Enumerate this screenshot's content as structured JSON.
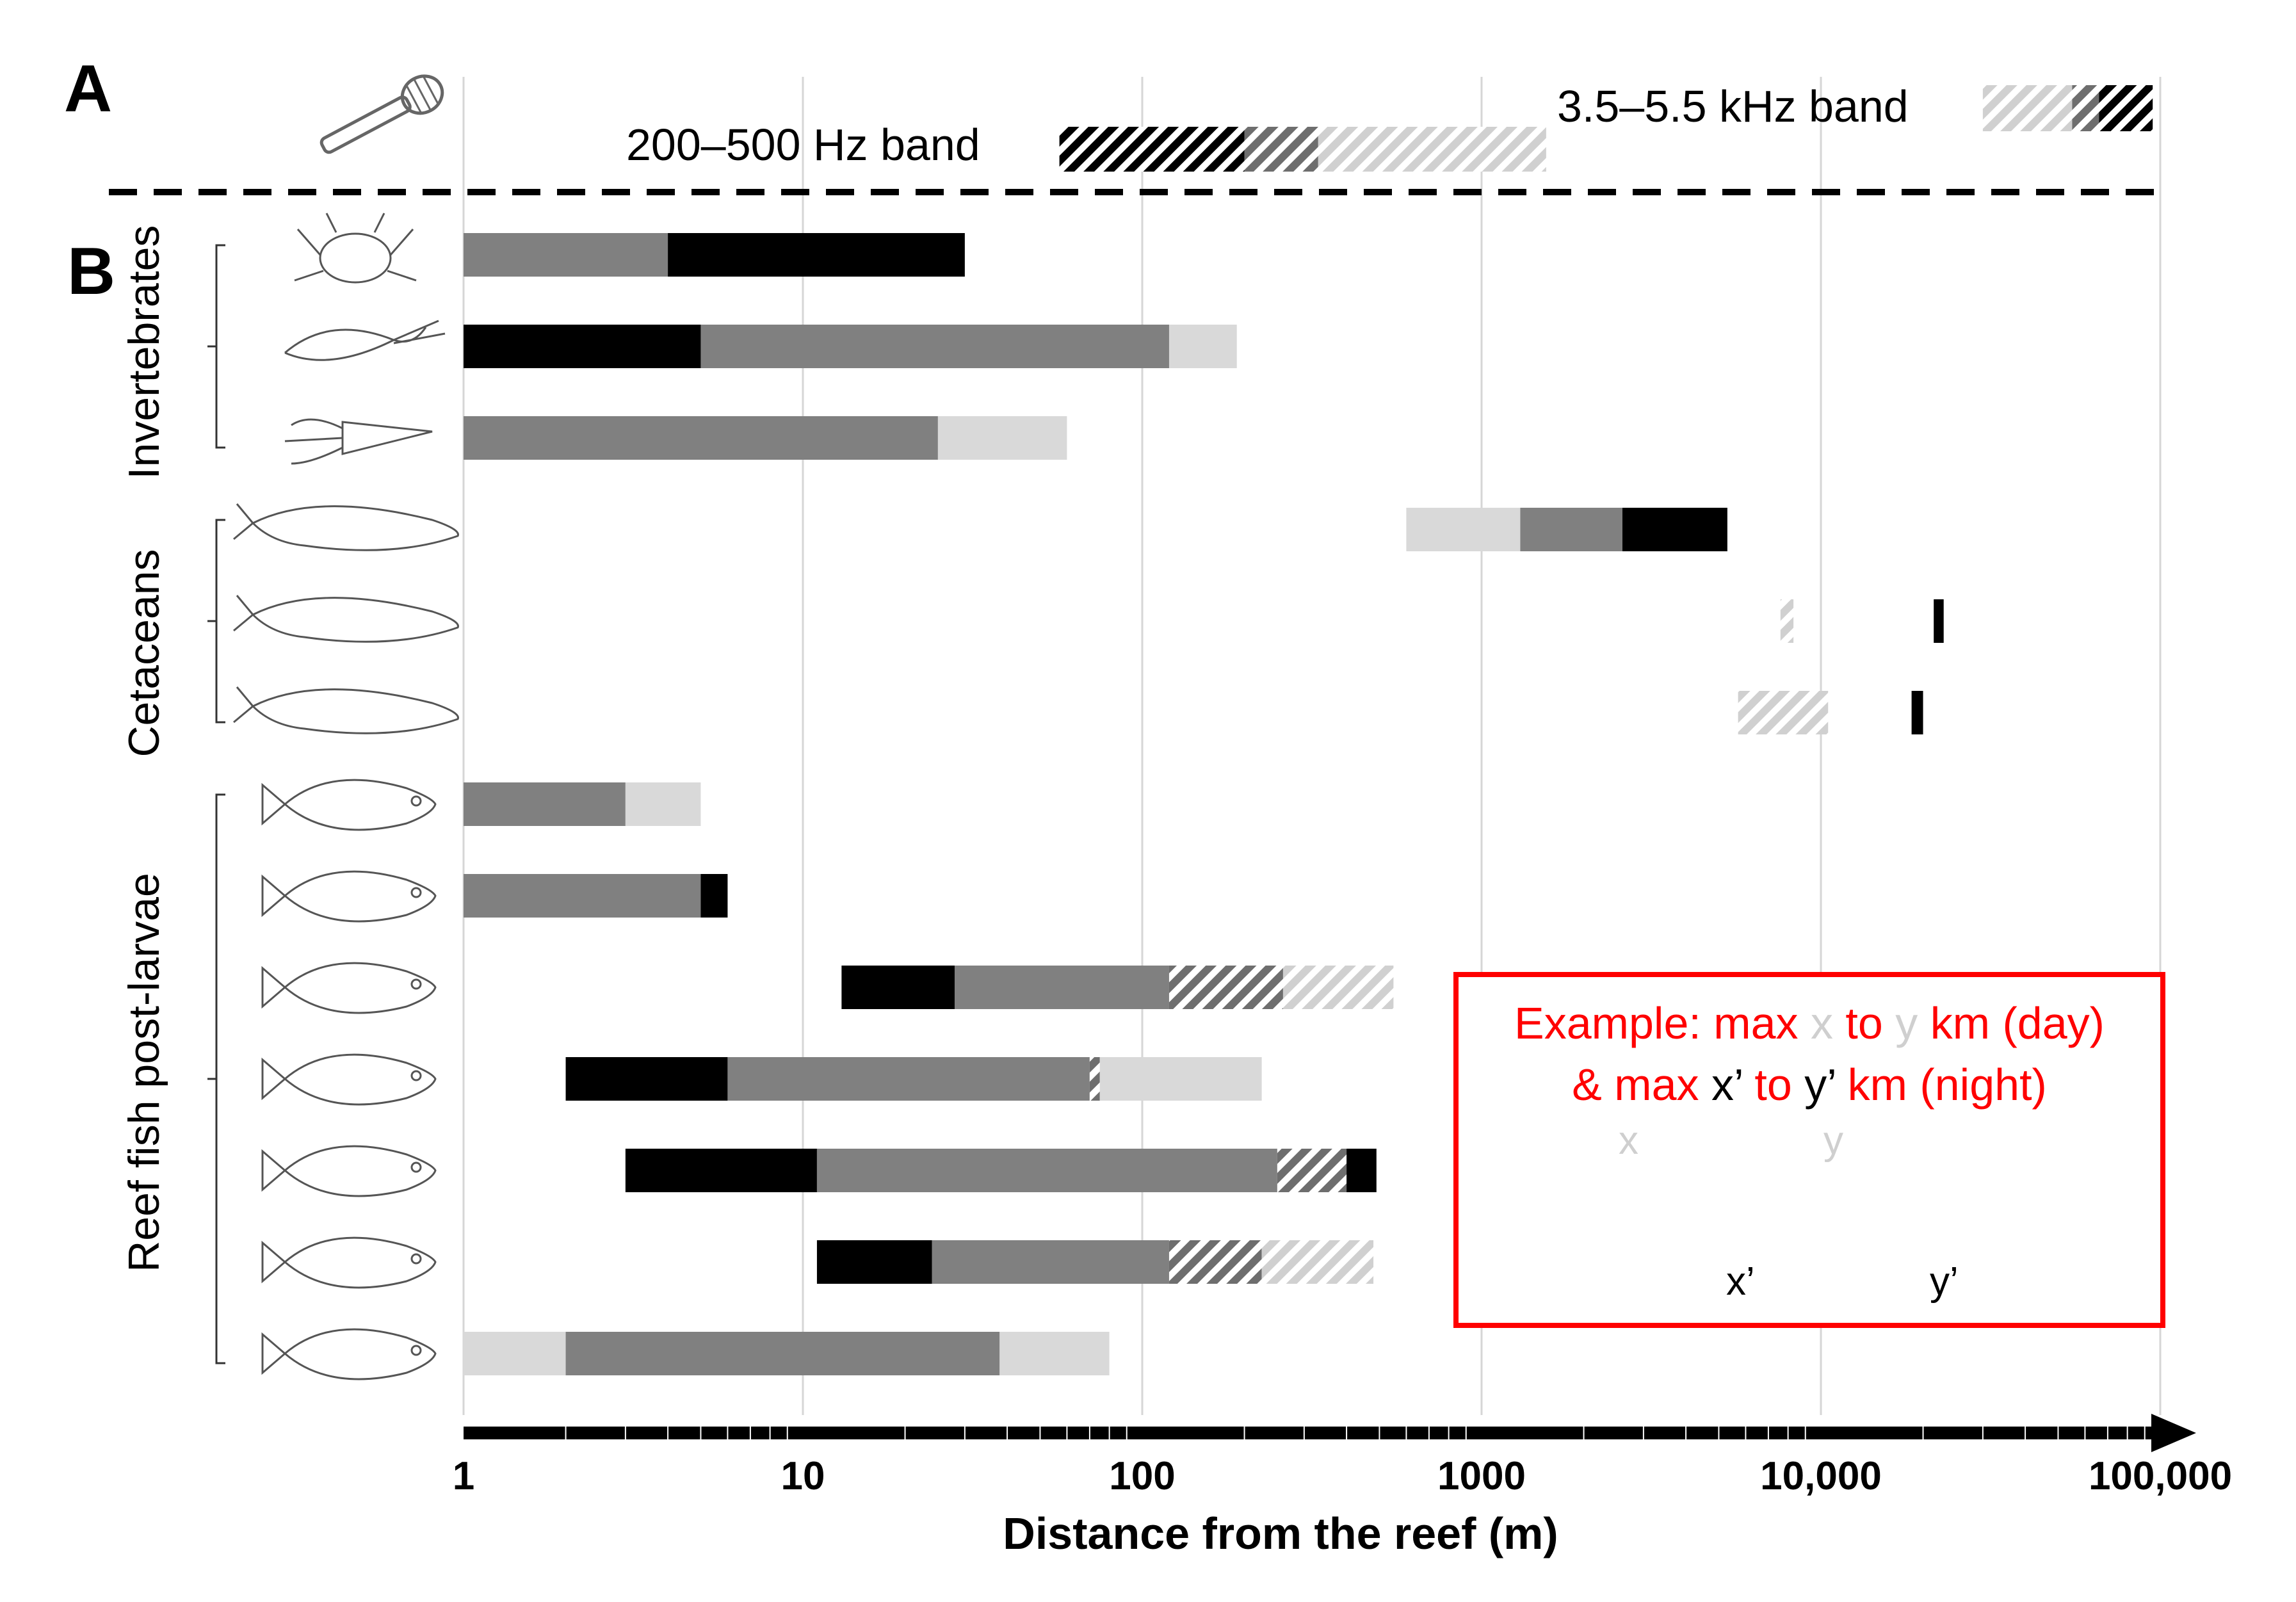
{
  "panels": {
    "a": "A",
    "b": "B"
  },
  "bands": {
    "low": {
      "label": "200–500 Hz band",
      "segments": [
        {
          "from": 57,
          "to": 200,
          "fill": "hatch-black"
        },
        {
          "from": 200,
          "to": 330,
          "fill": "hatch-dark"
        },
        {
          "from": 330,
          "to": 1550,
          "fill": "hatch-light"
        }
      ]
    },
    "high": {
      "label": "3.5–5.5 kHz band",
      "segments": [
        {
          "from": 30000,
          "to": 55000,
          "fill": "hatch-light"
        },
        {
          "from": 55000,
          "to": 66000,
          "fill": "hatch-dark"
        },
        {
          "from": 66000,
          "to": 95000,
          "fill": "hatch-black"
        }
      ]
    }
  },
  "groups": [
    {
      "label": "Invertebrates",
      "first_row": 0,
      "last_row": 2
    },
    {
      "label": "Cetaceans",
      "first_row": 3,
      "last_row": 5
    },
    {
      "label": "Reef fish post-larvae",
      "first_row": 6,
      "last_row": 12
    }
  ],
  "icons": [
    "crab-icon",
    "shrimp-icon",
    "squid-icon",
    "whale-icon",
    "beluga-icon",
    "dolphin-icon",
    "grouper-icon",
    "snapper-icon",
    "butterflyfish-icon",
    "damselfish-icon",
    "cardinalfish-icon",
    "triggerfish-icon",
    "sergeant-major-icon"
  ],
  "chart_data": {
    "type": "bar",
    "subtype": "horizontal range bars on log scale",
    "xlabel": "Distance from the reef (m)",
    "xscale": "log",
    "xlim": [
      1,
      100000
    ],
    "ticks": [
      {
        "value": 1,
        "label": "1"
      },
      {
        "value": 10,
        "label": "10"
      },
      {
        "value": 100,
        "label": "100"
      },
      {
        "value": 1000,
        "label": "1000"
      },
      {
        "value": 10000,
        "label": "10,000"
      },
      {
        "value": 100000,
        "label": "100,000"
      }
    ],
    "fills": {
      "light": "#d9d9d9",
      "mid": "#808080",
      "black": "#000000",
      "hatch-light": "hatched light grey",
      "hatch-dark": "hatched dark grey",
      "hatch-black": "hatched black"
    },
    "rows": [
      {
        "group": "Invertebrates",
        "icon": "crab-icon",
        "segments": [
          {
            "from": 1,
            "to": 4,
            "fill": "mid"
          },
          {
            "from": 4,
            "to": 30,
            "fill": "black"
          }
        ]
      },
      {
        "group": "Invertebrates",
        "icon": "shrimp-icon",
        "segments": [
          {
            "from": 1,
            "to": 5,
            "fill": "black"
          },
          {
            "from": 5,
            "to": 120,
            "fill": "mid"
          },
          {
            "from": 120,
            "to": 190,
            "fill": "light"
          }
        ]
      },
      {
        "group": "Invertebrates",
        "icon": "squid-icon",
        "segments": [
          {
            "from": 1,
            "to": 25,
            "fill": "mid"
          },
          {
            "from": 25,
            "to": 60,
            "fill": "light"
          }
        ]
      },
      {
        "group": "Cetaceans",
        "icon": "whale-icon",
        "segments": [
          {
            "from": 600,
            "to": 1300,
            "fill": "light"
          },
          {
            "from": 1300,
            "to": 2600,
            "fill": "mid"
          },
          {
            "from": 2600,
            "to": 5300,
            "fill": "black"
          }
        ]
      },
      {
        "group": "Cetaceans",
        "icon": "beluga-icon",
        "segments": [
          {
            "from": 7600,
            "to": 8300,
            "fill": "hatch-light"
          },
          {
            "from": 21500,
            "to": 23000,
            "fill": "black"
          }
        ]
      },
      {
        "group": "Cetaceans",
        "icon": "dolphin-icon",
        "segments": [
          {
            "from": 5700,
            "to": 10500,
            "fill": "hatch-light"
          },
          {
            "from": 18500,
            "to": 20000,
            "fill": "black"
          }
        ]
      },
      {
        "group": "Reef fish post-larvae",
        "icon": "grouper-icon",
        "segments": [
          {
            "from": 1,
            "to": 3,
            "fill": "mid"
          },
          {
            "from": 3,
            "to": 5,
            "fill": "light"
          }
        ]
      },
      {
        "group": "Reef fish post-larvae",
        "icon": "snapper-icon",
        "segments": [
          {
            "from": 1,
            "to": 5,
            "fill": "mid"
          },
          {
            "from": 5,
            "to": 6,
            "fill": "black"
          }
        ]
      },
      {
        "group": "Reef fish post-larvae",
        "icon": "butterflyfish-icon",
        "segments": [
          {
            "from": 13,
            "to": 28,
            "fill": "black"
          },
          {
            "from": 28,
            "to": 120,
            "fill": "mid"
          },
          {
            "from": 120,
            "to": 260,
            "fill": "hatch-dark"
          },
          {
            "from": 260,
            "to": 550,
            "fill": "hatch-light"
          }
        ]
      },
      {
        "group": "Reef fish post-larvae",
        "icon": "damselfish-icon",
        "segments": [
          {
            "from": 2,
            "to": 6,
            "fill": "black"
          },
          {
            "from": 6,
            "to": 70,
            "fill": "mid"
          },
          {
            "from": 70,
            "to": 75,
            "fill": "hatch-dark"
          },
          {
            "from": 75,
            "to": 225,
            "fill": "light"
          }
        ]
      },
      {
        "group": "Reef fish post-larvae",
        "icon": "cardinalfish-icon",
        "segments": [
          {
            "from": 3,
            "to": 11,
            "fill": "black"
          },
          {
            "from": 11,
            "to": 250,
            "fill": "mid"
          },
          {
            "from": 250,
            "to": 400,
            "fill": "hatch-dark"
          },
          {
            "from": 400,
            "to": 490,
            "fill": "black"
          }
        ]
      },
      {
        "group": "Reef fish post-larvae",
        "icon": "triggerfish-icon",
        "segments": [
          {
            "from": 11,
            "to": 24,
            "fill": "black"
          },
          {
            "from": 24,
            "to": 120,
            "fill": "mid"
          },
          {
            "from": 120,
            "to": 225,
            "fill": "hatch-dark"
          },
          {
            "from": 225,
            "to": 480,
            "fill": "hatch-light"
          }
        ]
      },
      {
        "group": "Reef fish post-larvae",
        "icon": "sergeant-major-icon",
        "segments": [
          {
            "from": 1,
            "to": 2,
            "fill": "light"
          },
          {
            "from": 2,
            "to": 38,
            "fill": "mid"
          },
          {
            "from": 38,
            "to": 80,
            "fill": "light"
          }
        ]
      }
    ]
  },
  "legend": {
    "line1": {
      "a": "Example:  max ",
      "x": "x",
      "b": " to ",
      "y": "y",
      "c": " km (day)"
    },
    "line2": {
      "a": "& max ",
      "x": "x’",
      "b": " to ",
      "y": "y’",
      "c": " km (night)"
    },
    "x_label": "x",
    "y_label": "y",
    "xp_label": "x’",
    "yp_label": "y’"
  },
  "colors": {
    "accent": "#ff0000",
    "light": "#d9d9d9",
    "mid": "#808080",
    "dark": "#000000"
  }
}
